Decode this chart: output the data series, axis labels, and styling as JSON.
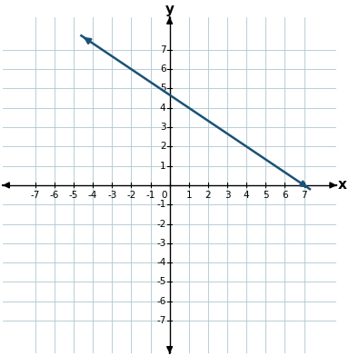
{
  "xlim": [
    -8,
    8
  ],
  "ylim": [
    -8,
    8
  ],
  "xticks": [
    -7,
    -6,
    -5,
    -4,
    -3,
    -2,
    -1,
    0,
    1,
    2,
    3,
    4,
    5,
    6,
    7
  ],
  "yticks": [
    -7,
    -6,
    -5,
    -4,
    -3,
    -2,
    -1,
    0,
    1,
    2,
    3,
    4,
    5,
    6,
    7
  ],
  "xlabel": "x",
  "ylabel": "y",
  "line_color": "#1a5276",
  "line_width": 1.8,
  "slope": -0.6667,
  "intercept": 4.6667,
  "x_start": -4.6,
  "x_end": 7.3,
  "arrow_color": "#1a5276",
  "grid_color": "#aec6cf",
  "grid_alpha": 0.8,
  "background_color": "#ffffff",
  "tick_fontsize": 7.5,
  "label_fontsize": 11
}
